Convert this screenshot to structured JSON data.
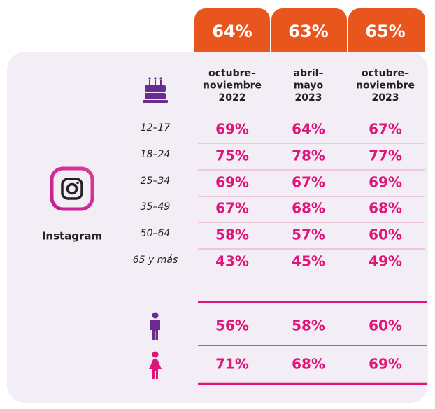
{
  "totals": [
    "64%",
    "63%",
    "65%"
  ],
  "columns": [
    [
      "octubre–",
      "noviembre",
      "2022"
    ],
    [
      "abril–",
      "mayo",
      "2023"
    ],
    [
      "octubre–",
      "noviembre",
      "2023"
    ]
  ],
  "platform": "Instagram",
  "age_rows": [
    {
      "label": "12–17",
      "values": [
        "69%",
        "64%",
        "67%"
      ]
    },
    {
      "label": "18–24",
      "values": [
        "75%",
        "78%",
        "77%"
      ]
    },
    {
      "label": "25–34",
      "values": [
        "69%",
        "67%",
        "69%"
      ]
    },
    {
      "label": "35–49",
      "values": [
        "67%",
        "68%",
        "68%"
      ]
    },
    {
      "label": "50–64",
      "values": [
        "58%",
        "57%",
        "60%"
      ]
    },
    {
      "label": "65 y más",
      "values": [
        "43%",
        "45%",
        "49%"
      ]
    }
  ],
  "gender_rows": [
    {
      "values": [
        "56%",
        "58%",
        "60%"
      ]
    },
    {
      "values": [
        "71%",
        "68%",
        "69%"
      ]
    }
  ]
}
